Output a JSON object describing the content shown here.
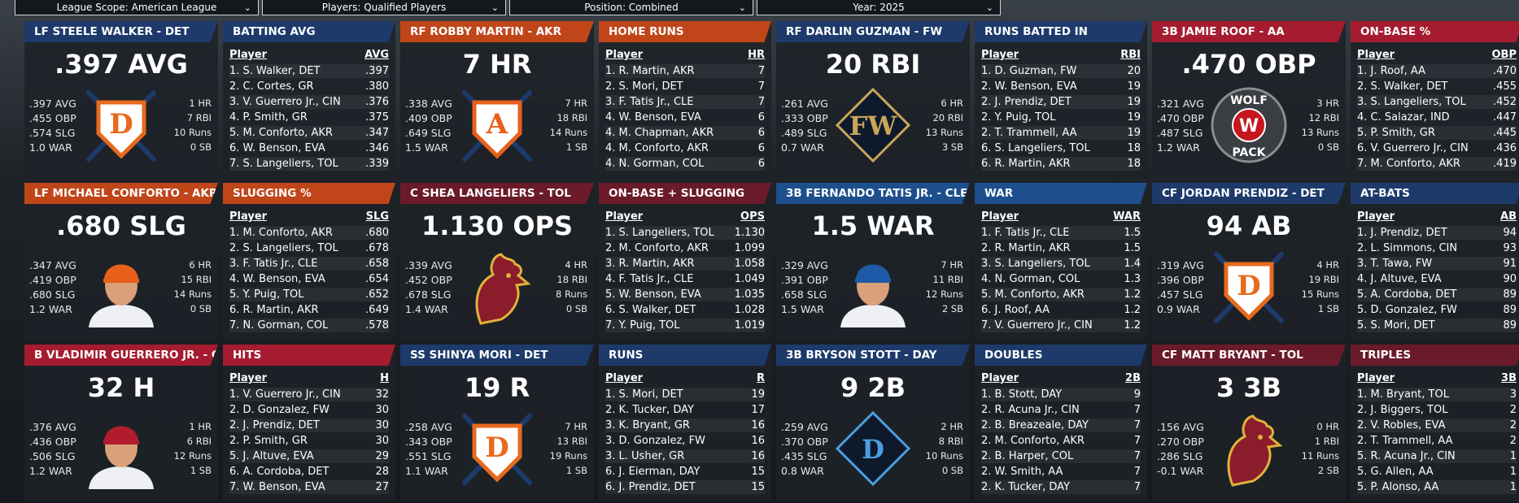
{
  "filters": [
    "League Scope: American League",
    "Players: Qualified Players",
    "Position: Combined",
    "Year: 2025"
  ],
  "panels": [
    {
      "tag": "LF STEELE WALKER - DET",
      "color": "#1d3a6b",
      "headline": ".397 AVG",
      "left": [
        ".397 AVG",
        ".455 OBP",
        ".574 SLG",
        "1.0 WAR"
      ],
      "right": [
        "1 HR",
        "7 RBI",
        "10 Runs",
        "0 SB"
      ],
      "logo": {
        "kind": "shield",
        "text": "D",
        "color": "#e86a1c"
      },
      "board": "BATTING AVG",
      "col_player": "Player",
      "col_stat": "AVG",
      "rows": [
        [
          "1. S. Walker, DET",
          ".397"
        ],
        [
          "2. C. Cortes, GR",
          ".380"
        ],
        [
          "3. V. Guerrero Jr., CIN",
          ".376"
        ],
        [
          "4. P. Smith, GR",
          ".375"
        ],
        [
          "5. M. Conforto, AKR",
          ".347"
        ],
        [
          "6. W. Benson, EVA",
          ".346"
        ],
        [
          "7. S. Langeliers, TOL",
          ".339"
        ]
      ]
    },
    {
      "tag": "RF ROBBY MARTIN - AKR",
      "color": "#c0461a",
      "headline": "7 HR",
      "left": [
        ".338 AVG",
        ".409 OBP",
        ".649 SLG",
        "1.5 WAR"
      ],
      "right": [
        "7 HR",
        "18 RBI",
        "14 Runs",
        "1 SB"
      ],
      "logo": {
        "kind": "shield",
        "text": "A",
        "color": "#e8601c"
      },
      "board": "HOME RUNS",
      "col_player": "Player",
      "col_stat": "HR",
      "rows": [
        [
          "1. R. Martin, AKR",
          "7"
        ],
        [
          "2. S. Mori, DET",
          "7"
        ],
        [
          "3. F. Tatis Jr., CLE",
          "7"
        ],
        [
          "4. W. Benson, EVA",
          "6"
        ],
        [
          "4. M. Chapman, AKR",
          "6"
        ],
        [
          "4. M. Conforto, AKR",
          "6"
        ],
        [
          "4. N. Gorman, COL",
          "6"
        ]
      ]
    },
    {
      "tag": "RF DARLIN GUZMAN - FW",
      "color": "#1d3a6b",
      "headline": "20 RBI",
      "left": [
        ".261 AVG",
        ".333 OBP",
        ".489 SLG",
        "0.7 WAR"
      ],
      "right": [
        "6 HR",
        "20 RBI",
        "13 Runs",
        "3 SB"
      ],
      "logo": {
        "kind": "diamond",
        "text": "FW",
        "color": "#c9a55a"
      },
      "board": "RUNS BATTED IN",
      "col_player": "Player",
      "col_stat": "RBI",
      "rows": [
        [
          "1. D. Guzman, FW",
          "20"
        ],
        [
          "2. W. Benson, EVA",
          "19"
        ],
        [
          "2. J. Prendiz, DET",
          "19"
        ],
        [
          "2. Y. Puig, TOL",
          "19"
        ],
        [
          "2. T. Trammell, AA",
          "19"
        ],
        [
          "6. S. Langeliers, TOL",
          "18"
        ],
        [
          "6. R. Martin, AKR",
          "18"
        ]
      ]
    },
    {
      "tag": "3B JAMIE ROOF - AA",
      "color": "#a51c30",
      "headline": ".470 OBP",
      "left": [
        ".321 AVG",
        ".470 OBP",
        ".487 SLG",
        "1.2 WAR"
      ],
      "right": [
        "3 HR",
        "12 RBI",
        "13 Runs",
        "0 SB"
      ],
      "logo": {
        "kind": "circle",
        "text": "W",
        "top": "WOLF",
        "bottom": "PACK",
        "color": "#c4161c"
      },
      "board": "ON-BASE %",
      "col_player": "Player",
      "col_stat": "OBP",
      "rows": [
        [
          "1. J. Roof, AA",
          ".470"
        ],
        [
          "2. S. Walker, DET",
          ".455"
        ],
        [
          "3. S. Langeliers, TOL",
          ".452"
        ],
        [
          "4. C. Salazar, IND",
          ".447"
        ],
        [
          "5. P. Smith, GR",
          ".445"
        ],
        [
          "6. V. Guerrero Jr., CIN",
          ".436"
        ],
        [
          "7. M. Conforto, AKR",
          ".419"
        ]
      ]
    },
    {
      "tag": "LF MICHAEL CONFORTO - AKR",
      "color": "#c0461a",
      "headline": ".680 SLG",
      "left": [
        ".347 AVG",
        ".419 OBP",
        ".680 SLG",
        "1.2 WAR"
      ],
      "right": [
        "6 HR",
        "15 RBI",
        "14 Runs",
        "0 SB"
      ],
      "logo": {
        "kind": "photo",
        "color": "#e8601c"
      },
      "board": "SLUGGING %",
      "col_player": "Player",
      "col_stat": "SLG",
      "rows": [
        [
          "1. M. Conforto, AKR",
          ".680"
        ],
        [
          "2. S. Langeliers, TOL",
          ".678"
        ],
        [
          "3. F. Tatis Jr., CLE",
          ".658"
        ],
        [
          "4. W. Benson, EVA",
          ".654"
        ],
        [
          "5. Y. Puig, TOL",
          ".652"
        ],
        [
          "6. R. Martin, AKR",
          ".649"
        ],
        [
          "7. N. Gorman, COL",
          ".578"
        ]
      ]
    },
    {
      "tag": "C SHEA LANGELIERS - TOL",
      "color": "#6b1a2a",
      "headline": "1.130 OPS",
      "left": [
        ".339 AVG",
        ".452 OBP",
        ".678 SLG",
        "1.4 WAR"
      ],
      "right": [
        "4 HR",
        "18 RBI",
        "8 Runs",
        "0 SB"
      ],
      "logo": {
        "kind": "rooster",
        "color": "#8a1c2c"
      },
      "board": "ON-BASE + SLUGGING",
      "col_player": "Player",
      "col_stat": "OPS",
      "rows": [
        [
          "1. S. Langeliers, TOL",
          "1.130"
        ],
        [
          "2. M. Conforto, AKR",
          "1.099"
        ],
        [
          "3. R. Martin, AKR",
          "1.058"
        ],
        [
          "4. F. Tatis Jr., CLE",
          "1.049"
        ],
        [
          "5. W. Benson, EVA",
          "1.035"
        ],
        [
          "6. S. Walker, DET",
          "1.028"
        ],
        [
          "7. Y. Puig, TOL",
          "1.019"
        ]
      ]
    },
    {
      "tag": "3B FERNANDO TATIS JR. - CLE",
      "color": "#1c4f8c",
      "headline": "1.5 WAR",
      "left": [
        ".329 AVG",
        ".391 OBP",
        ".658 SLG",
        "1.5 WAR"
      ],
      "right": [
        "7 HR",
        "11 RBI",
        "12 Runs",
        "2 SB"
      ],
      "logo": {
        "kind": "photo",
        "color": "#1f5aa8"
      },
      "board": "WAR",
      "col_player": "Player",
      "col_stat": "WAR",
      "rows": [
        [
          "1. F. Tatis Jr., CLE",
          "1.5"
        ],
        [
          "2. R. Martin, AKR",
          "1.5"
        ],
        [
          "3. S. Langeliers, TOL",
          "1.4"
        ],
        [
          "4. N. Gorman, COL",
          "1.3"
        ],
        [
          "5. M. Conforto, AKR",
          "1.2"
        ],
        [
          "6. J. Roof, AA",
          "1.2"
        ],
        [
          "7. V. Guerrero Jr., CIN",
          "1.2"
        ]
      ]
    },
    {
      "tag": "CF JORDAN PRENDIZ - DET",
      "color": "#1d3a6b",
      "headline": "94 AB",
      "left": [
        ".319 AVG",
        ".396 OBP",
        ".457 SLG",
        "0.9 WAR"
      ],
      "right": [
        "4 HR",
        "19 RBI",
        "15 Runs",
        "1 SB"
      ],
      "logo": {
        "kind": "shield",
        "text": "D",
        "color": "#e86a1c"
      },
      "board": "AT-BATS",
      "col_player": "Player",
      "col_stat": "AB",
      "rows": [
        [
          "1. J. Prendiz, DET",
          "94"
        ],
        [
          "2. L. Simmons, CIN",
          "93"
        ],
        [
          "3. T. Tawa, FW",
          "91"
        ],
        [
          "4. J. Altuve, EVA",
          "90"
        ],
        [
          "5. A. Cordoba, DET",
          "89"
        ],
        [
          "5. D. Gonzalez, FW",
          "89"
        ],
        [
          "5. S. Mori, DET",
          "89"
        ]
      ]
    },
    {
      "tag": "B VLADIMIR GUERRERO JR. - CI",
      "color": "#a51c30",
      "headline": "32 H",
      "left": [
        ".376 AVG",
        ".436 OBP",
        ".506 SLG",
        "1.2 WAR"
      ],
      "right": [
        "1 HR",
        "6 RBI",
        "12 Runs",
        "1 SB"
      ],
      "logo": {
        "kind": "photo",
        "color": "#b01c2c"
      },
      "board": "HITS",
      "col_player": "Player",
      "col_stat": "H",
      "rows": [
        [
          "1. V. Guerrero Jr., CIN",
          "32"
        ],
        [
          "2. D. Gonzalez, FW",
          "30"
        ],
        [
          "2. J. Prendiz, DET",
          "30"
        ],
        [
          "2. P. Smith, GR",
          "30"
        ],
        [
          "5. J. Altuve, EVA",
          "29"
        ],
        [
          "6. A. Cordoba, DET",
          "28"
        ],
        [
          "7. W. Benson, EVA",
          "27"
        ]
      ]
    },
    {
      "tag": "SS SHINYA MORI - DET",
      "color": "#1d3a6b",
      "headline": "19 R",
      "left": [
        ".258 AVG",
        ".343 OBP",
        ".551 SLG",
        "1.1 WAR"
      ],
      "right": [
        "7 HR",
        "13 RBI",
        "19 Runs",
        "1 SB"
      ],
      "logo": {
        "kind": "shield",
        "text": "D",
        "color": "#e86a1c"
      },
      "board": "RUNS",
      "col_player": "Player",
      "col_stat": "R",
      "rows": [
        [
          "1. S. Mori, DET",
          "19"
        ],
        [
          "2. K. Tucker, DAY",
          "17"
        ],
        [
          "3. K. Bryant, GR",
          "16"
        ],
        [
          "3. D. Gonzalez, FW",
          "16"
        ],
        [
          "3. L. Usher, GR",
          "16"
        ],
        [
          "6. J. Eierman, DAY",
          "15"
        ],
        [
          "6. J. Prendiz, DET",
          "15"
        ]
      ]
    },
    {
      "tag": "3B BRYSON STOTT - DAY",
      "color": "#1d3a6b",
      "headline": "9 2B",
      "left": [
        ".259 AVG",
        ".370 OBP",
        ".435 SLG",
        "0.8 WAR"
      ],
      "right": [
        "2 HR",
        "8 RBI",
        "10 Runs",
        "0 SB"
      ],
      "logo": {
        "kind": "diamond",
        "text": "D",
        "color": "#4a9fe0"
      },
      "board": "DOUBLES",
      "col_player": "Player",
      "col_stat": "2B",
      "rows": [
        [
          "1. B. Stott, DAY",
          "9"
        ],
        [
          "2. R. Acuna Jr., CIN",
          "7"
        ],
        [
          "2. B. Breazeale, DAY",
          "7"
        ],
        [
          "2. M. Conforto, AKR",
          "7"
        ],
        [
          "2. B. Harper, COL",
          "7"
        ],
        [
          "2. W. Smith, AA",
          "7"
        ],
        [
          "2. K. Tucker, DAY",
          "7"
        ]
      ]
    },
    {
      "tag": "CF MATT BRYANT - TOL",
      "color": "#6b1a2a",
      "headline": "3 3B",
      "left": [
        ".156 AVG",
        ".270 OBP",
        ".286 SLG",
        "-0.1 WAR"
      ],
      "right": [
        "0 HR",
        "1 RBI",
        "11 Runs",
        "2 SB"
      ],
      "logo": {
        "kind": "rooster",
        "color": "#8a1c2c"
      },
      "board": "TRIPLES",
      "col_player": "Player",
      "col_stat": "3B",
      "rows": [
        [
          "1. M. Bryant, TOL",
          "3"
        ],
        [
          "2. J. Biggers, TOL",
          "2"
        ],
        [
          "2. V. Robles, EVA",
          "2"
        ],
        [
          "2. T. Trammell, AA",
          "2"
        ],
        [
          "5. R. Acuna Jr., CIN",
          "1"
        ],
        [
          "5. G. Allen, AA",
          "1"
        ],
        [
          "5. P. Alonso, AA",
          "1"
        ]
      ]
    }
  ]
}
